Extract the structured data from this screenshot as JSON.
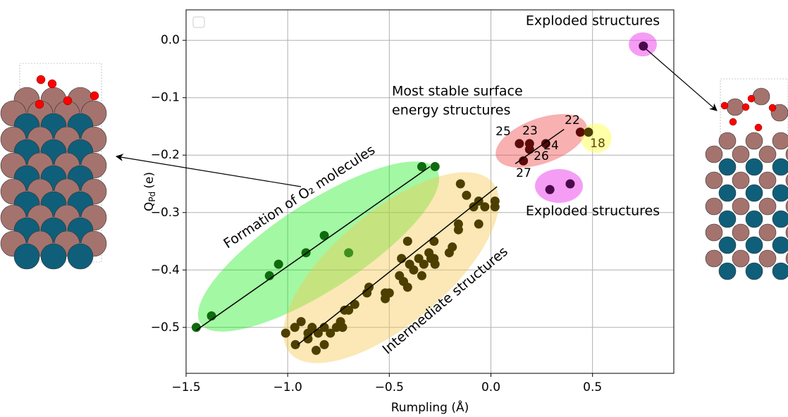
{
  "chart_data": {
    "type": "scatter",
    "x_label": "Rumpling (Å)",
    "y_label_parts": [
      "Q",
      "Pd",
      "(e)"
    ],
    "xlim": [
      -1.5,
      0.9
    ],
    "ylim": [
      -0.58,
      0.053
    ],
    "xticks": [
      {
        "value": -1.5,
        "label": "−1.5"
      },
      {
        "value": -1.0,
        "label": "−1.0"
      },
      {
        "value": -0.5,
        "label": "−0.5"
      },
      {
        "value": 0.0,
        "label": "0.0"
      },
      {
        "value": 0.5,
        "label": "0.5"
      }
    ],
    "yticks": [
      {
        "value": 0.0,
        "label": "0.0"
      },
      {
        "value": -0.1,
        "label": "−0.1"
      },
      {
        "value": -0.2,
        "label": "−0.2"
      },
      {
        "value": -0.3,
        "label": "−0.3"
      },
      {
        "value": -0.4,
        "label": "−0.4"
      },
      {
        "value": -0.5,
        "label": "−0.5"
      }
    ],
    "grid": true,
    "series": [
      {
        "color": "#0e6b0e",
        "x": [
          -1.45,
          -1.375,
          -1.09,
          -1.045,
          -0.91,
          -0.82,
          -0.34,
          -0.275
        ],
        "values": [
          -0.5,
          -0.48,
          -0.41,
          -0.39,
          -0.37,
          -0.34,
          -0.22,
          -0.22
        ]
      },
      {
        "color": "#3f8f1f",
        "x": [
          -0.7
        ],
        "values": [
          -0.37
        ]
      },
      {
        "color": "#4d3f00",
        "x": [
          -1.01,
          -0.965,
          -0.934,
          -0.962,
          -0.9,
          -0.88,
          -0.9,
          -0.85,
          -0.86,
          -0.82,
          -0.82,
          -0.79,
          -0.76,
          -0.74,
          -0.73,
          -0.72,
          -0.7,
          -0.67,
          -0.6,
          -0.61,
          -0.52,
          -0.52,
          -0.5,
          -0.45,
          -0.44,
          -0.43,
          -0.41,
          -0.41,
          -0.4,
          -0.38,
          -0.355,
          -0.34,
          -0.33,
          -0.305,
          -0.295,
          -0.28,
          -0.28,
          -0.275,
          -0.205,
          -0.19,
          -0.16,
          -0.16,
          -0.15,
          -0.12,
          -0.085,
          -0.06,
          -0.06,
          -0.03,
          0.02,
          0.02
        ],
        "values": [
          -0.51,
          -0.5,
          -0.49,
          -0.53,
          -0.51,
          -0.5,
          -0.52,
          -0.51,
          -0.54,
          -0.5,
          -0.53,
          -0.51,
          -0.5,
          -0.49,
          -0.5,
          -0.47,
          -0.47,
          -0.46,
          -0.43,
          -0.44,
          -0.44,
          -0.45,
          -0.44,
          -0.41,
          -0.38,
          -0.42,
          -0.43,
          -0.35,
          -0.39,
          -0.4,
          -0.38,
          -0.41,
          -0.39,
          -0.37,
          -0.38,
          -0.38,
          -0.35,
          -0.39,
          -0.37,
          -0.36,
          -0.33,
          -0.32,
          -0.25,
          -0.27,
          -0.29,
          -0.32,
          -0.28,
          -0.29,
          -0.29,
          -0.28
        ]
      },
      {
        "color": "#5c0a0a",
        "x": [
          0.14,
          0.16,
          0.19,
          0.19,
          0.27,
          0.44
        ],
        "values": [
          -0.18,
          -0.21,
          -0.19,
          -0.18,
          -0.18,
          -0.16
        ]
      },
      {
        "color": "#4d3f00",
        "x": [
          0.48
        ],
        "values": [
          -0.16
        ]
      },
      {
        "color": "#4b0a4b",
        "x": [
          0.29,
          0.39,
          0.75
        ],
        "values": [
          -0.26,
          -0.25,
          -0.01
        ]
      }
    ],
    "fit_lines": [
      {
        "x": [
          -1.45,
          -0.3
        ],
        "y": [
          -0.505,
          -0.22
        ]
      },
      {
        "x": [
          -0.95,
          0.03
        ],
        "y": [
          -0.53,
          -0.255
        ]
      },
      {
        "x": [
          0.12,
          0.36
        ],
        "y": [
          -0.215,
          -0.155
        ]
      }
    ],
    "annotations": [
      "Exploded structures",
      "Most stable surface",
      "energy structures",
      "Exploded structures",
      "22",
      "23",
      "24",
      "25",
      "26",
      "27",
      "18",
      "Formation of O₂ molecules",
      "Intermediate structures"
    ]
  }
}
